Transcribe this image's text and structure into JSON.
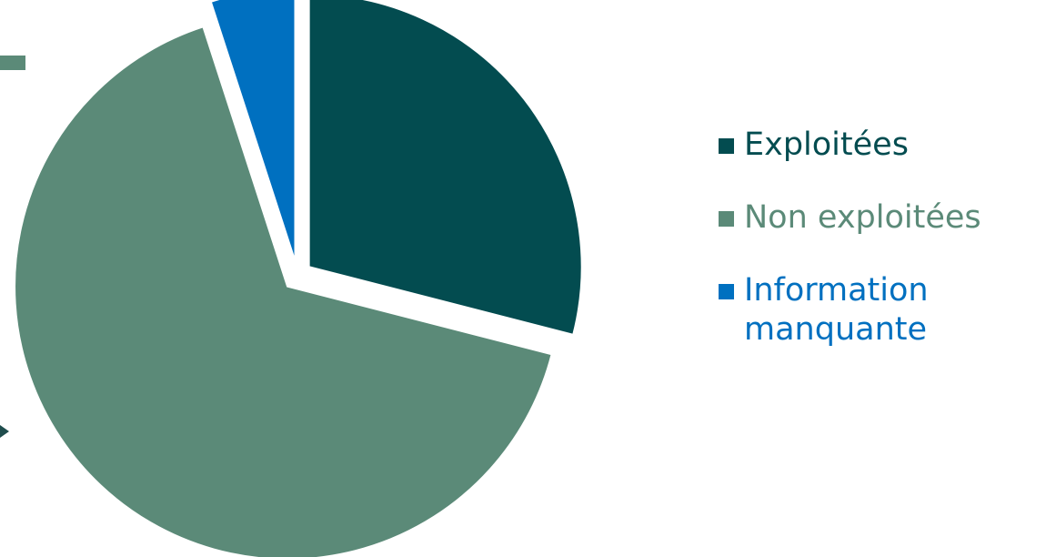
{
  "chart_data": {
    "type": "pie",
    "title": "",
    "exploded": true,
    "legend_position": "right",
    "series": [
      {
        "name": "Exploitées",
        "value": 29,
        "color": "#034c50"
      },
      {
        "name": "Non exploitées",
        "value": 66,
        "color": "#5b8a78"
      },
      {
        "name": "Information manquante",
        "value": 5,
        "color": "#0070c0"
      }
    ]
  },
  "colors": {
    "edge_bar": "#5b8a78",
    "edge_arrow": "#1f4d4d"
  }
}
